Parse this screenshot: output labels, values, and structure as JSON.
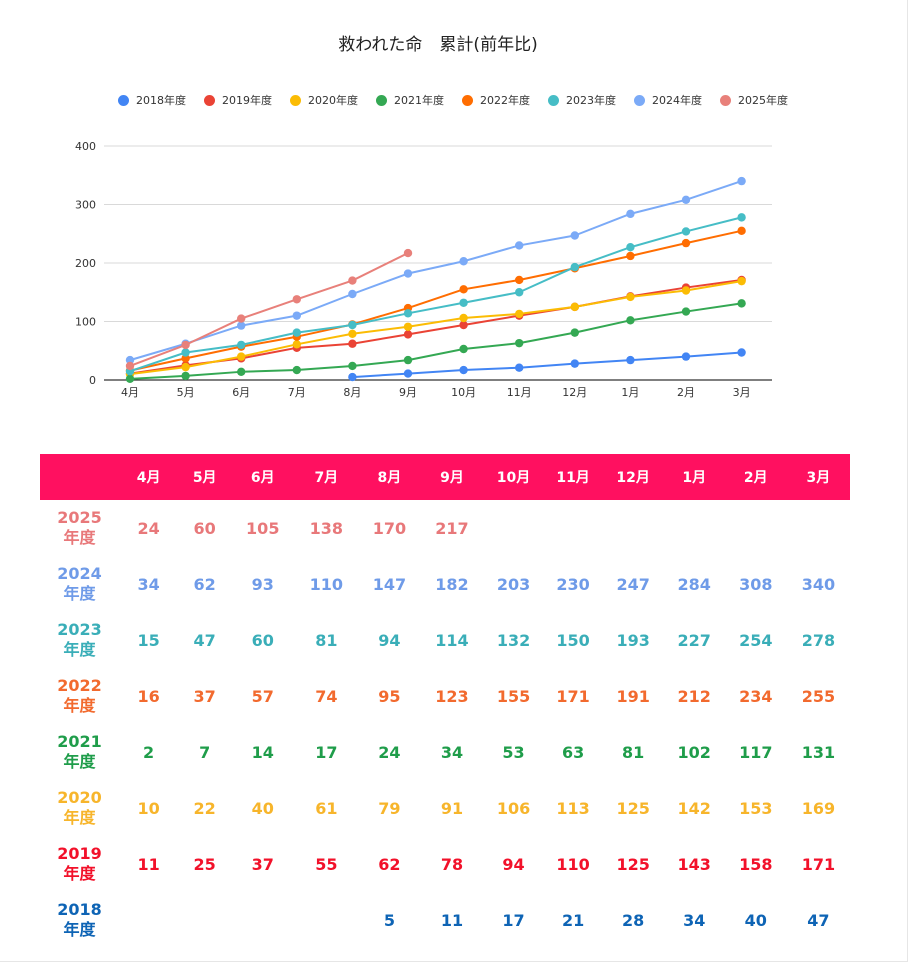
{
  "chart_data": {
    "type": "line",
    "title": "救われた命　累計(前年比)",
    "categories": [
      "4月",
      "5月",
      "6月",
      "7月",
      "8月",
      "9月",
      "10月",
      "11月",
      "12月",
      "1月",
      "2月",
      "3月"
    ],
    "ylim": [
      0,
      400
    ],
    "yticks": [
      0,
      100,
      200,
      300,
      400
    ],
    "legend_position": "top",
    "grid": true,
    "series": [
      {
        "name": "2018年度",
        "color": "#4285F4",
        "values": [
          null,
          null,
          null,
          null,
          5,
          11,
          17,
          21,
          28,
          34,
          40,
          47
        ]
      },
      {
        "name": "2019年度",
        "color": "#EA4335",
        "values": [
          11,
          25,
          37,
          55,
          62,
          78,
          94,
          110,
          125,
          143,
          158,
          171
        ]
      },
      {
        "name": "2020年度",
        "color": "#FBBC04",
        "values": [
          10,
          22,
          40,
          61,
          79,
          91,
          106,
          113,
          125,
          142,
          153,
          169
        ]
      },
      {
        "name": "2021年度",
        "color": "#34A853",
        "values": [
          2,
          7,
          14,
          17,
          24,
          34,
          53,
          63,
          81,
          102,
          117,
          131
        ]
      },
      {
        "name": "2022年度",
        "color": "#FF6D01",
        "values": [
          16,
          37,
          57,
          74,
          95,
          123,
          155,
          171,
          191,
          212,
          234,
          255
        ]
      },
      {
        "name": "2023年度",
        "color": "#46BDC6",
        "values": [
          15,
          47,
          60,
          81,
          94,
          114,
          132,
          150,
          193,
          227,
          254,
          278
        ]
      },
      {
        "name": "2024年度",
        "color": "#7BAAF7",
        "values": [
          34,
          62,
          93,
          110,
          147,
          182,
          203,
          230,
          247,
          284,
          308,
          340
        ]
      },
      {
        "name": "2025年度",
        "color": "#E8807A",
        "values": [
          24,
          60,
          105,
          138,
          170,
          217,
          null,
          null,
          null,
          null,
          null,
          null
        ]
      }
    ]
  },
  "table": {
    "header_bg": "#ff1060",
    "columns": [
      "4月",
      "5月",
      "6月",
      "7月",
      "8月",
      "9月",
      "10月",
      "11月",
      "12月",
      "1月",
      "2月",
      "3月"
    ],
    "rows": [
      {
        "year": "2025",
        "suffix": "年度",
        "color": "#e8787a",
        "values": [
          "24",
          "60",
          "105",
          "138",
          "170",
          "217",
          "",
          "",
          "",
          "",
          "",
          ""
        ]
      },
      {
        "year": "2024",
        "suffix": "年度",
        "color": "#6f9be8",
        "values": [
          "34",
          "62",
          "93",
          "110",
          "147",
          "182",
          "203",
          "230",
          "247",
          "284",
          "308",
          "340"
        ]
      },
      {
        "year": "2023",
        "suffix": "年度",
        "color": "#3aaeb8",
        "values": [
          "15",
          "47",
          "60",
          "81",
          "94",
          "114",
          "132",
          "150",
          "193",
          "227",
          "254",
          "278"
        ]
      },
      {
        "year": "2022",
        "suffix": "年度",
        "color": "#f26a2e",
        "values": [
          "16",
          "37",
          "57",
          "74",
          "95",
          "123",
          "155",
          "171",
          "191",
          "212",
          "234",
          "255"
        ]
      },
      {
        "year": "2021",
        "suffix": "年度",
        "color": "#1f9d4a",
        "values": [
          "2",
          "7",
          "14",
          "17",
          "24",
          "34",
          "53",
          "63",
          "81",
          "102",
          "117",
          "131"
        ]
      },
      {
        "year": "2020",
        "suffix": "年度",
        "color": "#f7b52b",
        "values": [
          "10",
          "22",
          "40",
          "61",
          "79",
          "91",
          "106",
          "113",
          "125",
          "142",
          "153",
          "169"
        ]
      },
      {
        "year": "2019",
        "suffix": "年度",
        "color": "#f2112a",
        "values": [
          "11",
          "25",
          "37",
          "55",
          "62",
          "78",
          "94",
          "110",
          "125",
          "143",
          "158",
          "171"
        ]
      },
      {
        "year": "2018",
        "suffix": "年度",
        "color": "#0e64b5",
        "values": [
          "",
          "",
          "",
          "",
          "5",
          "11",
          "17",
          "21",
          "28",
          "34",
          "40",
          "47"
        ]
      }
    ]
  }
}
